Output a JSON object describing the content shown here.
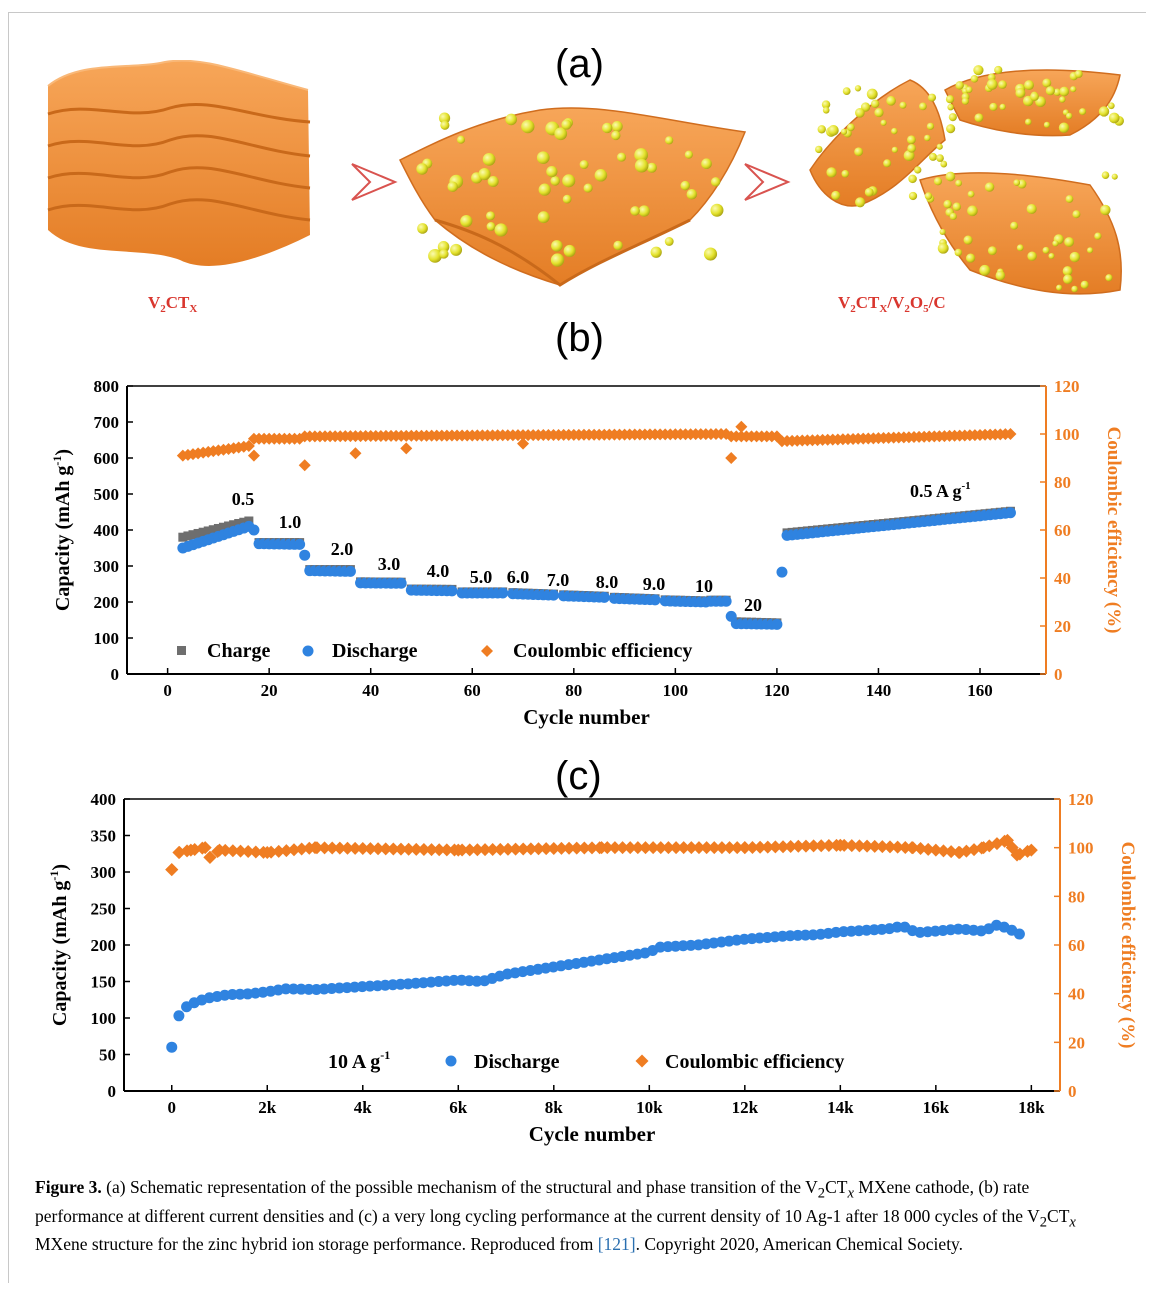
{
  "panels": {
    "a": "(a)",
    "b": "(b)",
    "c": "(c)"
  },
  "schematic": {
    "label_left": {
      "base": "V",
      "s1": "2",
      "mid": "CT",
      "s2": "X"
    },
    "label_right": {
      "p1": "V",
      "s1": "2",
      "p2": "CT",
      "s2": "X",
      "p3": "/V",
      "s3": "2",
      "p4": "O",
      "s4": "5",
      "p5": "/C"
    },
    "colors": {
      "sheet": "#f0923a",
      "sheet_dark": "#d06d1e",
      "particle": "#e5e52a",
      "arrow": "#d9534f"
    }
  },
  "chart_data": [
    {
      "id": "b",
      "type": "scatter",
      "xlabel": "Cycle number",
      "ylabel": "Capacity (mAh g",
      "ylabel_sup": "-1",
      "ylabel_close": ")",
      "y2label": "Coulombic efficiency (%)",
      "xlim": [
        -8,
        173
      ],
      "ylim": [
        0,
        800
      ],
      "y2lim": [
        0,
        120
      ],
      "xticks": [
        "0",
        "20",
        "40",
        "60",
        "80",
        "100",
        "120",
        "140",
        "160"
      ],
      "yticks": [
        "0",
        "100",
        "200",
        "300",
        "400",
        "500",
        "600",
        "700",
        "800"
      ],
      "y2ticks": [
        "0",
        "20",
        "40",
        "60",
        "80",
        "100",
        "120"
      ],
      "legend": {
        "charge": "Charge",
        "discharge": "Discharge",
        "ce": "Coulombic efficiency"
      },
      "colors": {
        "charge": "#6e6e6e",
        "discharge": "#2f83e0",
        "ce": "#ef7d22",
        "axis2": "#ef7d22"
      },
      "segments": [
        {
          "label": "0.5",
          "start": 3,
          "end": 16,
          "charge": [
            380,
            425
          ],
          "discharge": [
            350,
            410
          ]
        },
        {
          "label": "1.0",
          "start": 18,
          "end": 26,
          "charge": [
            365,
            365
          ],
          "discharge": [
            362,
            360
          ]
        },
        {
          "label": "2.0",
          "start": 28,
          "end": 36,
          "charge": [
            290,
            290
          ],
          "discharge": [
            287,
            285
          ]
        },
        {
          "label": "3.0",
          "start": 38,
          "end": 46,
          "charge": [
            256,
            255
          ],
          "discharge": [
            253,
            252
          ]
        },
        {
          "label": "4.0",
          "start": 48,
          "end": 56,
          "charge": [
            236,
            235
          ],
          "discharge": [
            233,
            231
          ]
        },
        {
          "label": "5.0",
          "start": 58,
          "end": 66,
          "charge": [
            228,
            228
          ],
          "discharge": [
            225,
            225
          ]
        },
        {
          "label": "6.0",
          "start": 68,
          "end": 76,
          "charge": [
            226,
            222
          ],
          "discharge": [
            223,
            219
          ]
        },
        {
          "label": "7.0",
          "start": 78,
          "end": 86,
          "charge": [
            220,
            216
          ],
          "discharge": [
            217,
            213
          ]
        },
        {
          "label": "8.0",
          "start": 88,
          "end": 96,
          "charge": [
            213,
            209
          ],
          "discharge": [
            210,
            206
          ]
        },
        {
          "label": "9.0",
          "start": 98,
          "end": 106,
          "charge": [
            206,
            203
          ],
          "discharge": [
            203,
            200
          ]
        },
        {
          "label": "10",
          "start": 107,
          "end": 110,
          "charge": [
            205,
            205
          ],
          "discharge": [
            202,
            202
          ]
        },
        {
          "label": "20",
          "start": 112,
          "end": 120,
          "charge": [
            145,
            142
          ],
          "discharge": [
            140,
            138
          ]
        },
        {
          "label": "0.5 A g",
          "label_sup": "-1",
          "start": 122,
          "end": 166,
          "charge": [
            392,
            452
          ],
          "discharge": [
            385,
            448
          ]
        }
      ],
      "transition_points": [
        {
          "x": 17,
          "y": 400
        },
        {
          "x": 27,
          "y": 330
        },
        {
          "x": 111,
          "y": 160
        },
        {
          "x": 121,
          "y": 283
        }
      ],
      "ce_base": [
        {
          "start": 3,
          "end": 16,
          "from": 91,
          "to": 95
        },
        {
          "start": 17,
          "end": 26,
          "from": 98,
          "to": 98
        },
        {
          "start": 27,
          "end": 110,
          "from": 99,
          "to": 100
        },
        {
          "start": 111,
          "end": 120,
          "from": 99,
          "to": 99
        },
        {
          "start": 121,
          "end": 166,
          "from": 97,
          "to": 100
        }
      ],
      "ce_outliers": [
        {
          "x": 17,
          "y": 91
        },
        {
          "x": 27,
          "y": 87
        },
        {
          "x": 37,
          "y": 92
        },
        {
          "x": 47,
          "y": 94
        },
        {
          "x": 70,
          "y": 96
        },
        {
          "x": 111,
          "y": 90
        },
        {
          "x": 113,
          "y": 103
        }
      ]
    },
    {
      "id": "c",
      "type": "scatter",
      "xlabel": "Cycle number",
      "ylabel": "Capacity (mAh g",
      "ylabel_sup": "-1",
      "ylabel_close": ")",
      "y2label": "Coulombic efficiency (%)",
      "xlim": [
        -1000,
        18600
      ],
      "ylim": [
        0,
        400
      ],
      "y2lim": [
        0,
        120
      ],
      "xticks": [
        "0",
        "2k",
        "4k",
        "6k",
        "8k",
        "10k",
        "12k",
        "14k",
        "16k",
        "18k"
      ],
      "yticks": [
        "0",
        "50",
        "100",
        "150",
        "200",
        "250",
        "300",
        "350",
        "400"
      ],
      "y2ticks": [
        "0",
        "20",
        "40",
        "60",
        "80",
        "100",
        "120"
      ],
      "annotation": "10 A g",
      "annotation_sup": "-1",
      "legend": {
        "discharge": "Discharge",
        "ce": "Coulombic efficiency"
      },
      "colors": {
        "discharge": "#2f83e0",
        "ce": "#ef7d22",
        "axis2": "#ef7d22"
      },
      "discharge": [
        {
          "x": 0,
          "y": 60
        },
        {
          "x": 150,
          "y": 103
        },
        {
          "x": 300,
          "y": 115
        },
        {
          "x": 500,
          "y": 122
        },
        {
          "x": 800,
          "y": 128
        },
        {
          "x": 1200,
          "y": 132
        },
        {
          "x": 1600,
          "y": 133
        },
        {
          "x": 2000,
          "y": 136
        },
        {
          "x": 2400,
          "y": 140
        },
        {
          "x": 3000,
          "y": 139
        },
        {
          "x": 3500,
          "y": 141
        },
        {
          "x": 4000,
          "y": 143
        },
        {
          "x": 5000,
          "y": 147
        },
        {
          "x": 6000,
          "y": 152
        },
        {
          "x": 6500,
          "y": 150
        },
        {
          "x": 7000,
          "y": 160
        },
        {
          "x": 8000,
          "y": 170
        },
        {
          "x": 9000,
          "y": 180
        },
        {
          "x": 10000,
          "y": 190
        },
        {
          "x": 10200,
          "y": 197
        },
        {
          "x": 11000,
          "y": 200
        },
        {
          "x": 12000,
          "y": 208
        },
        {
          "x": 13000,
          "y": 213
        },
        {
          "x": 13500,
          "y": 214
        },
        {
          "x": 14000,
          "y": 218
        },
        {
          "x": 15000,
          "y": 222
        },
        {
          "x": 15300,
          "y": 226
        },
        {
          "x": 15600,
          "y": 217
        },
        {
          "x": 16000,
          "y": 219
        },
        {
          "x": 16500,
          "y": 222
        },
        {
          "x": 17000,
          "y": 219
        },
        {
          "x": 17300,
          "y": 228
        },
        {
          "x": 17600,
          "y": 220
        },
        {
          "x": 17900,
          "y": 210
        }
      ],
      "ce": [
        {
          "x": 0,
          "y": 91
        },
        {
          "x": 150,
          "y": 98
        },
        {
          "x": 400,
          "y": 99
        },
        {
          "x": 700,
          "y": 100
        },
        {
          "x": 800,
          "y": 96
        },
        {
          "x": 1000,
          "y": 99
        },
        {
          "x": 2000,
          "y": 98
        },
        {
          "x": 3000,
          "y": 100
        },
        {
          "x": 6000,
          "y": 99
        },
        {
          "x": 9000,
          "y": 100
        },
        {
          "x": 12000,
          "y": 100
        },
        {
          "x": 14000,
          "y": 101
        },
        {
          "x": 15500,
          "y": 100
        },
        {
          "x": 16500,
          "y": 98
        },
        {
          "x": 17000,
          "y": 100
        },
        {
          "x": 17500,
          "y": 103
        },
        {
          "x": 17700,
          "y": 97
        },
        {
          "x": 18000,
          "y": 99
        }
      ]
    }
  ],
  "caption": {
    "figure": "Figure 3.",
    "t1": " (a) Schematic representation of the possible mechanism of the structural and phase transition of the V",
    "s1": "2",
    "t2": "CT",
    "s2": "x",
    "t3": " MXene cathode, (b) rate performance at different current densities and (c) a very long cycling performance at the current density of 10 Ag-1 after 18 000 cycles of the V",
    "s3": "2",
    "t4": "CT",
    "s4": "x",
    "t5": " MXene structure for the zinc hybrid ion storage performance. Reproduced from ",
    "ref": "[121]",
    "t6": ". Copyright 2020, American Chemical Society."
  }
}
